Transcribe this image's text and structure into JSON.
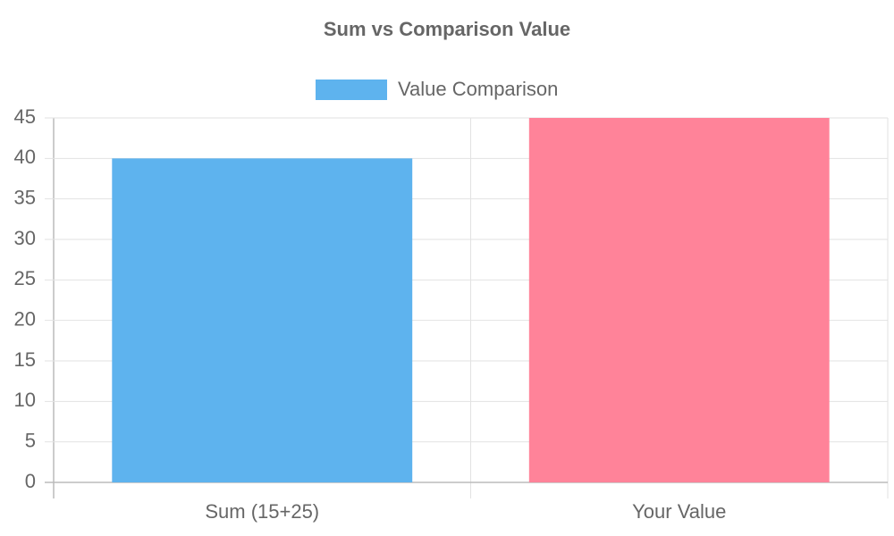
{
  "chart_data": {
    "type": "bar",
    "title": "Sum vs Comparison Value",
    "categories": [
      "Sum (15+25)",
      "Your Value"
    ],
    "series": [
      {
        "name": "Value Comparison",
        "colors": [
          "#5eb3ee",
          "#ff8399"
        ],
        "values": [
          40,
          45
        ]
      }
    ],
    "ylim": [
      0,
      45
    ],
    "yticks": [
      0,
      5,
      10,
      15,
      20,
      25,
      30,
      35,
      40,
      45
    ],
    "grid": true,
    "legend": "top"
  }
}
